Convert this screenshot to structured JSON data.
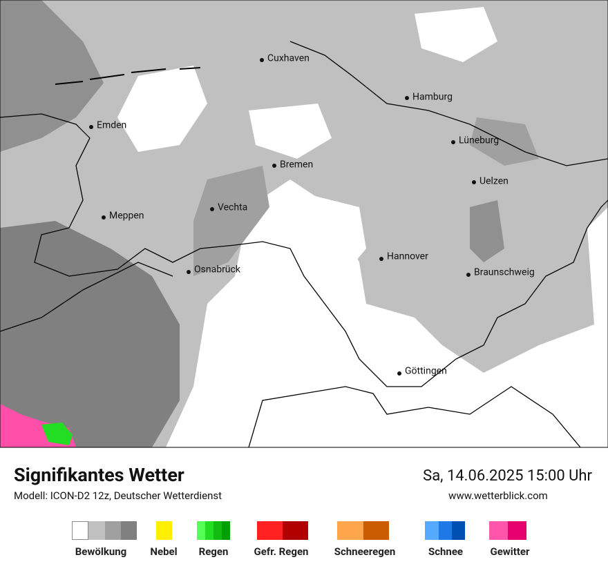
{
  "map": {
    "cities": [
      "Cuxhaven",
      "Hamburg",
      "Emden",
      "Lüneburg",
      "Bremen",
      "Uelzen",
      "Vechta",
      "Meppen",
      "Hannover",
      "Osnabrück",
      "Braunschweig",
      "Göttingen"
    ]
  },
  "header": {
    "title": "Signifikantes Wetter",
    "subtitle": "Modell: ICON-D2 12z, Deutscher Wetterdienst",
    "datetime": "Sa, 14.06.2025 15:00 Uhr",
    "website": "www.wetterblick.com"
  },
  "legend": {
    "items": [
      "Bewölkung",
      "Nebel",
      "Regen",
      "Gefr. Regen",
      "Schneeregen",
      "Schnee",
      "Gewitter"
    ]
  }
}
